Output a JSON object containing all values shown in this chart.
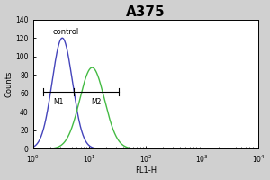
{
  "title": "A375",
  "xlabel": "FL1-H",
  "ylabel": "Counts",
  "xlim_log": [
    1.0,
    10000.0
  ],
  "ylim": [
    0,
    140
  ],
  "yticks": [
    0,
    20,
    40,
    60,
    80,
    100,
    120,
    140
  ],
  "control_label": "control",
  "blue_color": "#4444bb",
  "green_color": "#44bb44",
  "figure_facecolor": "#d0d0d0",
  "axes_facecolor": "#ffffff",
  "m1_label": "M1",
  "m2_label": "M2",
  "blue_peak_x_log": 0.52,
  "blue_peak_y": 120,
  "green_peak_x_log": 1.05,
  "green_peak_y": 88,
  "blue_sigma": 0.18,
  "green_sigma": 0.22,
  "m1_x1_log": 0.18,
  "m1_x2_log": 0.72,
  "m2_x1_log": 0.72,
  "m2_x2_log": 1.52,
  "marker_y": 62,
  "title_fontsize": 11,
  "label_fontsize": 6,
  "tick_fontsize": 5.5
}
